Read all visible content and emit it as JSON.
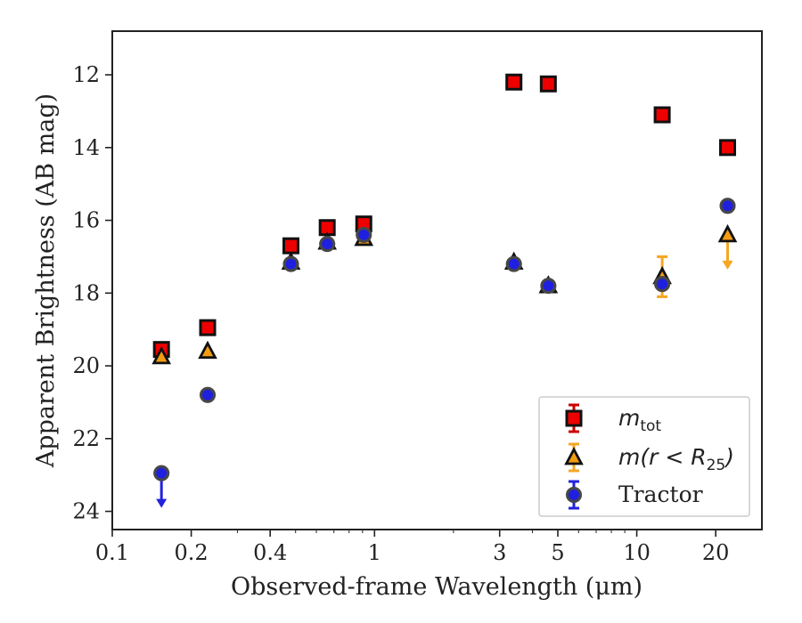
{
  "chart_data": {
    "type": "scatter",
    "xlabel": "Observed-frame Wavelength (μm)",
    "ylabel": "Apparent Brightness (AB mag)",
    "x_scale": "log",
    "y_inverted": true,
    "xlim": [
      0.1,
      30
    ],
    "ylim": [
      24.5,
      10.8
    ],
    "x_ticks": [
      {
        "value": 0.1,
        "label": "0.1"
      },
      {
        "value": 0.2,
        "label": "0.2"
      },
      {
        "value": 0.4,
        "label": "0.4"
      },
      {
        "value": 1,
        "label": "1"
      },
      {
        "value": 3,
        "label": "3"
      },
      {
        "value": 5,
        "label": "5"
      },
      {
        "value": 10,
        "label": "10"
      },
      {
        "value": 20,
        "label": "20"
      }
    ],
    "y_ticks": [
      {
        "value": 12,
        "label": "12"
      },
      {
        "value": 14,
        "label": "14"
      },
      {
        "value": 16,
        "label": "16"
      },
      {
        "value": 18,
        "label": "18"
      },
      {
        "value": 20,
        "label": "20"
      },
      {
        "value": 22,
        "label": "22"
      },
      {
        "value": 24,
        "label": "24"
      }
    ],
    "grid": false,
    "legend_position": "bottom-right",
    "series": [
      {
        "name_main": "m",
        "name_sub": "tot",
        "marker": "square",
        "face_color": "#ee0000",
        "err_color": "#cc0000",
        "points": [
          {
            "x": 0.154,
            "y": 19.55
          },
          {
            "x": 0.231,
            "y": 18.95
          },
          {
            "x": 0.48,
            "y": 16.7
          },
          {
            "x": 0.66,
            "y": 16.2
          },
          {
            "x": 0.91,
            "y": 16.1
          },
          {
            "x": 3.4,
            "y": 12.2
          },
          {
            "x": 4.6,
            "y": 12.25
          },
          {
            "x": 12.5,
            "y": 13.1
          },
          {
            "x": 22.2,
            "y": 14.0
          }
        ]
      },
      {
        "name_main": "m(r < R",
        "name_sub": "25",
        "name_tail": ")",
        "marker": "triangle",
        "face_color": "#f39c12",
        "err_color": "#f5a623",
        "points": [
          {
            "x": 0.154,
            "y": 19.75
          },
          {
            "x": 0.231,
            "y": 19.6
          },
          {
            "x": 0.48,
            "y": 17.15
          },
          {
            "x": 0.66,
            "y": 16.6
          },
          {
            "x": 0.91,
            "y": 16.5
          },
          {
            "x": 3.4,
            "y": 17.15
          },
          {
            "x": 4.6,
            "y": 17.8
          },
          {
            "x": 12.5,
            "y": 17.55,
            "err_low": 17.0,
            "err_high": 18.1
          },
          {
            "x": 22.2,
            "y": 16.4,
            "upper_limit": true
          }
        ]
      },
      {
        "name": "Tractor",
        "marker": "circle",
        "face_color": "#1f1fe0",
        "err_color": "#2222dd",
        "points": [
          {
            "x": 0.154,
            "y": 22.95,
            "upper_limit": true
          },
          {
            "x": 0.231,
            "y": 20.8
          },
          {
            "x": 0.48,
            "y": 17.2
          },
          {
            "x": 0.66,
            "y": 16.65
          },
          {
            "x": 0.91,
            "y": 16.4
          },
          {
            "x": 3.4,
            "y": 17.2
          },
          {
            "x": 4.6,
            "y": 17.8
          },
          {
            "x": 12.5,
            "y": 17.75
          },
          {
            "x": 22.2,
            "y": 15.6
          }
        ]
      }
    ],
    "legend_labels": {
      "tractor": "Tractor"
    }
  }
}
